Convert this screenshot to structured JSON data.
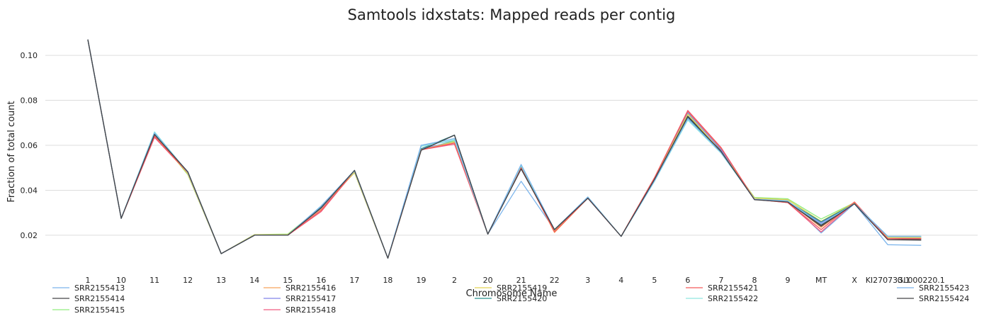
{
  "chart_data": {
    "type": "line",
    "title": "Samtools idxstats: Mapped reads per contig",
    "xlabel": "Chromosome Name",
    "ylabel": "Fraction of total count",
    "ylim": [
      0.008,
      0.112
    ],
    "yticks": [
      0.02,
      0.04,
      0.06,
      0.08,
      0.1
    ],
    "ytick_labels": [
      "0.02",
      "0.04",
      "0.06",
      "0.08",
      "0.10"
    ],
    "grid": true,
    "legend_position": "bottom",
    "categories": [
      "1",
      "10",
      "11",
      "12",
      "13",
      "14",
      "15",
      "16",
      "17",
      "18",
      "19",
      "2",
      "20",
      "21",
      "22",
      "3",
      "4",
      "5",
      "6",
      "7",
      "8",
      "9",
      "MT",
      "X",
      "KI270733.1",
      "GL000220.1"
    ],
    "series": [
      {
        "name": "SRR2155413",
        "color": "#7cb5ec",
        "values": [
          0.107,
          0.0275,
          0.0655,
          0.0478,
          0.0118,
          0.02,
          0.02,
          0.033,
          0.0485,
          0.0098,
          0.06,
          0.062,
          0.0205,
          0.044,
          0.0225,
          0.0365,
          0.0195,
          0.044,
          0.072,
          0.057,
          0.036,
          0.0355,
          0.021,
          0.034,
          0.0158,
          0.0155
        ]
      },
      {
        "name": "SRR2155414",
        "color": "#434348",
        "values": [
          0.107,
          0.0275,
          0.0645,
          0.048,
          0.0118,
          0.02,
          0.02,
          0.032,
          0.0488,
          0.0098,
          0.0578,
          0.0645,
          0.0205,
          0.0495,
          0.0225,
          0.0365,
          0.0195,
          0.045,
          0.073,
          0.0575,
          0.036,
          0.035,
          0.0245,
          0.034,
          0.0185,
          0.018
        ]
      },
      {
        "name": "SRR2155415",
        "color": "#90ed7d",
        "values": [
          0.107,
          0.0275,
          0.065,
          0.047,
          0.0118,
          0.0203,
          0.0205,
          0.0325,
          0.0478,
          0.0098,
          0.058,
          0.062,
          0.0205,
          0.05,
          0.0222,
          0.037,
          0.0195,
          0.0445,
          0.074,
          0.057,
          0.0368,
          0.0362,
          0.0272,
          0.0345,
          0.019,
          0.019
        ]
      },
      {
        "name": "SRR2155416",
        "color": "#f7a35c",
        "values": [
          0.107,
          0.0275,
          0.064,
          0.0475,
          0.0118,
          0.0202,
          0.0203,
          0.0315,
          0.048,
          0.0098,
          0.058,
          0.061,
          0.0205,
          0.0502,
          0.0212,
          0.0365,
          0.0195,
          0.0455,
          0.075,
          0.0585,
          0.036,
          0.035,
          0.0235,
          0.0345,
          0.0185,
          0.0185
        ]
      },
      {
        "name": "SRR2155417",
        "color": "#8085e9",
        "values": [
          0.107,
          0.0275,
          0.0645,
          0.048,
          0.0118,
          0.02,
          0.02,
          0.032,
          0.0485,
          0.0098,
          0.0585,
          0.0615,
          0.0205,
          0.0505,
          0.0222,
          0.0365,
          0.0195,
          0.045,
          0.0745,
          0.058,
          0.036,
          0.035,
          0.0255,
          0.0345,
          0.019,
          0.0188
        ]
      },
      {
        "name": "SRR2155418",
        "color": "#f15c80",
        "values": [
          0.107,
          0.0275,
          0.0635,
          0.0478,
          0.0118,
          0.02,
          0.02,
          0.0305,
          0.0485,
          0.0098,
          0.058,
          0.0605,
          0.0205,
          0.05,
          0.0218,
          0.0365,
          0.0195,
          0.0455,
          0.0755,
          0.059,
          0.036,
          0.0345,
          0.0215,
          0.0345,
          0.0185,
          0.0185
        ]
      },
      {
        "name": "SRR2155419",
        "color": "#e4d354",
        "values": [
          0.107,
          0.0275,
          0.0648,
          0.0473,
          0.0118,
          0.0202,
          0.0202,
          0.0325,
          0.048,
          0.0098,
          0.058,
          0.0615,
          0.0205,
          0.05,
          0.0222,
          0.0368,
          0.0195,
          0.0448,
          0.0738,
          0.0572,
          0.0365,
          0.0358,
          0.0262,
          0.0345,
          0.019,
          0.019
        ]
      },
      {
        "name": "SRR2155420",
        "color": "#2b908f",
        "values": [
          0.107,
          0.0275,
          0.065,
          0.0482,
          0.0118,
          0.02,
          0.02,
          0.0325,
          0.0488,
          0.0098,
          0.0585,
          0.0645,
          0.0205,
          0.0505,
          0.0225,
          0.0365,
          0.0195,
          0.0445,
          0.0725,
          0.057,
          0.036,
          0.035,
          0.026,
          0.034,
          0.0195,
          0.0195
        ]
      },
      {
        "name": "SRR2155421",
        "color": "#f45b5b",
        "values": [
          0.107,
          0.0275,
          0.064,
          0.0478,
          0.0118,
          0.02,
          0.02,
          0.031,
          0.0485,
          0.0098,
          0.058,
          0.061,
          0.0205,
          0.05,
          0.0215,
          0.0365,
          0.0195,
          0.0455,
          0.0752,
          0.0588,
          0.036,
          0.0345,
          0.0225,
          0.0348,
          0.0185,
          0.0185
        ]
      },
      {
        "name": "SRR2155422",
        "color": "#91e8e1",
        "values": [
          0.107,
          0.0275,
          0.066,
          0.048,
          0.0118,
          0.02,
          0.02,
          0.033,
          0.0485,
          0.0098,
          0.0595,
          0.0625,
          0.0205,
          0.051,
          0.0225,
          0.037,
          0.0195,
          0.044,
          0.0712,
          0.0565,
          0.036,
          0.0352,
          0.025,
          0.034,
          0.0195,
          0.0195
        ]
      },
      {
        "name": "SRR2155423",
        "color": "#7cb5ec",
        "values": [
          0.107,
          0.0275,
          0.0655,
          0.048,
          0.0118,
          0.02,
          0.02,
          0.033,
          0.0488,
          0.0098,
          0.06,
          0.063,
          0.0205,
          0.0515,
          0.0225,
          0.037,
          0.0195,
          0.0442,
          0.0718,
          0.0568,
          0.036,
          0.035,
          0.025,
          0.034,
          0.0195,
          0.0195
        ]
      },
      {
        "name": "SRR2155424",
        "color": "#434348",
        "values": [
          0.107,
          0.0275,
          0.0648,
          0.0482,
          0.0118,
          0.02,
          0.02,
          0.0322,
          0.0488,
          0.0098,
          0.0578,
          0.0645,
          0.0205,
          0.0495,
          0.0225,
          0.0365,
          0.0195,
          0.0448,
          0.0728,
          0.0572,
          0.0358,
          0.0348,
          0.024,
          0.034,
          0.018,
          0.0178
        ]
      }
    ]
  }
}
